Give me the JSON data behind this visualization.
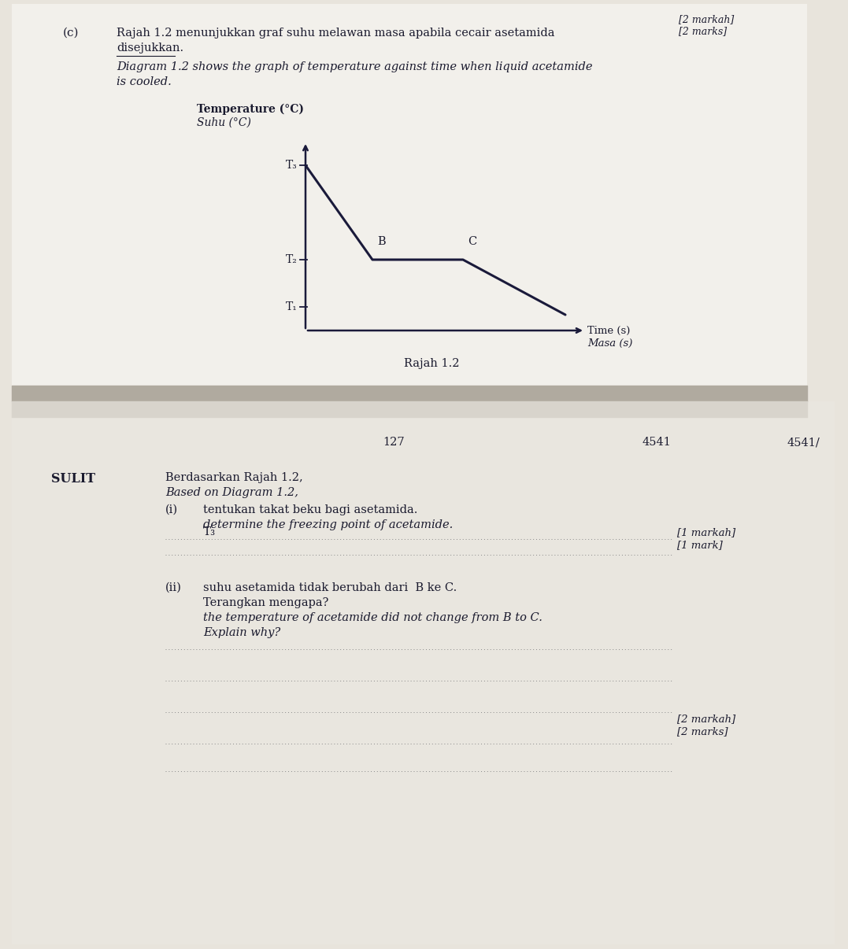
{
  "background_color": "#e8e4dc",
  "top_page_color": "#f2f0eb",
  "bottom_page_color": "#e9e6df",
  "line_color": "#1a1a3a",
  "text_color": "#1a1a2e",
  "dotted_color": "#888888",
  "top_right_markah": "[2 markah]",
  "top_right_marks": "[2 marks]",
  "part_label": "(c)",
  "malay_line1": "Rajah 1.2 menunjukkan graf suhu melawan masa apabila cecair asetamida",
  "malay_line2": "disejukkan.",
  "english_line1": "Diagram 1.2 shows the graph of temperature against time when liquid acetamide",
  "english_line2": "is cooled.",
  "ylabel_bold": "Temperature (°C)",
  "ylabel_italic": "Suhu (°C)",
  "xlabel_normal": "Time (s)",
  "xlabel_italic": "Masa (s)",
  "diagram_caption": "Rajah 1.2",
  "t1_label": "T₁",
  "t2_label": "T₂",
  "t3_label": "T₃",
  "page_number": "127",
  "right_code": "4541",
  "far_right_code": "4541/",
  "sulit": "SULIT",
  "berdasarkan_malay": "Berdasarkan Rajah 1.2,",
  "berdasarkan_english": "Based on Diagram 1.2,",
  "qi_num": "(i)",
  "qi_malay": "tentukan takat beku bagi asetamida.",
  "qi_english": "determine the freezing point of acetamide.",
  "qi_answer": "T₃",
  "qi_mark_malay": "[1 markah]",
  "qi_mark_english": "[1 mark]",
  "qii_num": "(ii)",
  "qii_malay1": "suhu asetamida tidak berubah dari  B ke C.",
  "qii_malay2": "Terangkan mengapa?",
  "qii_english1": "the temperature of acetamide did not change from B to C.",
  "qii_english2": "Explain why?",
  "qii_mark_malay": "[2 markah]",
  "qii_mark_english": "[2 marks]"
}
